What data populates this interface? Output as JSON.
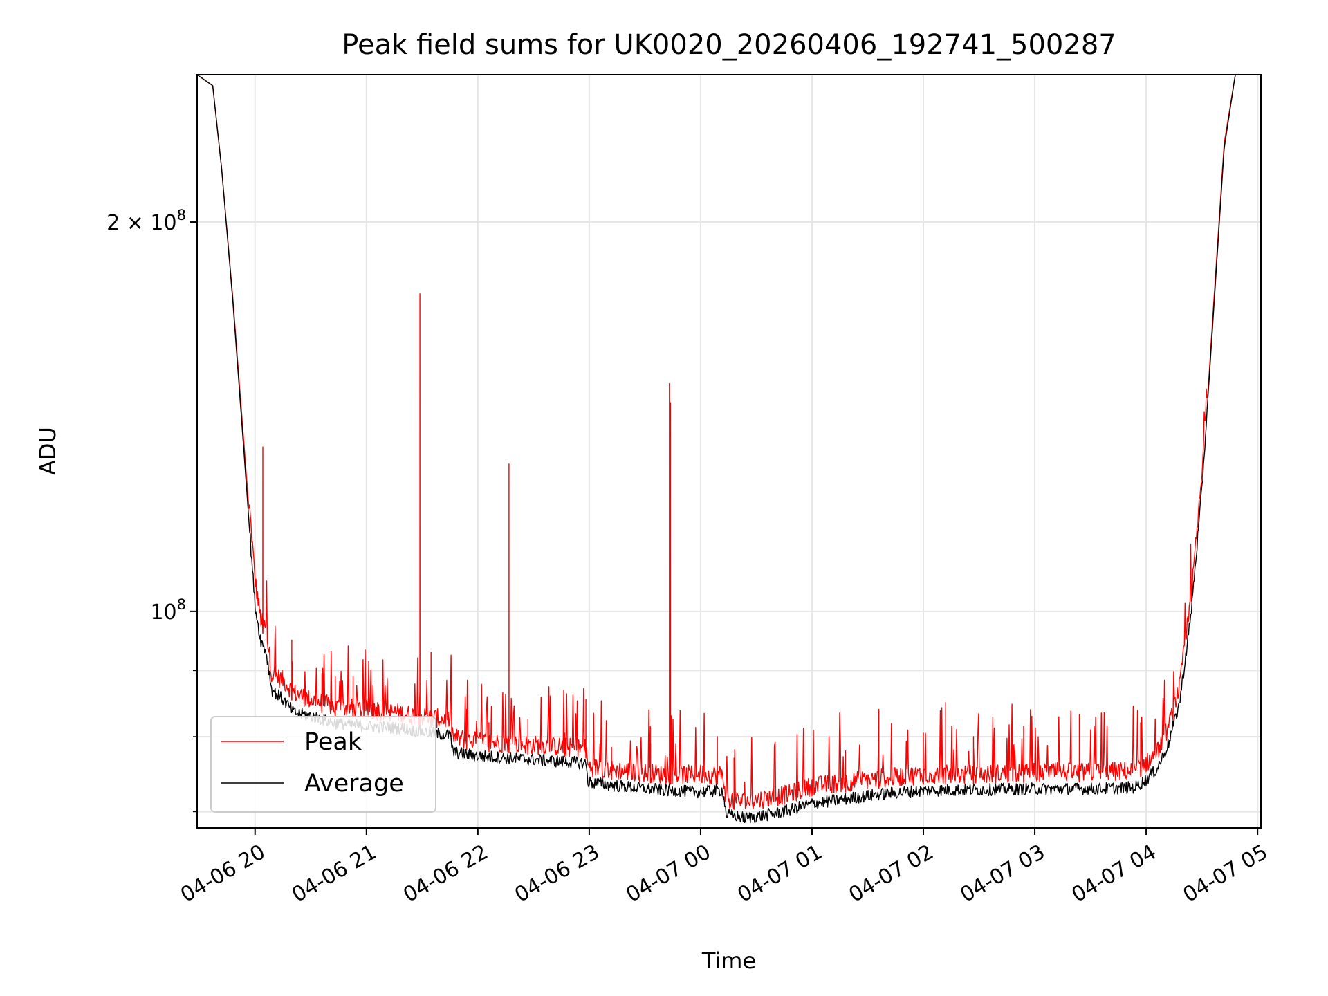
{
  "chart_data": {
    "type": "line",
    "title": "Peak field sums for UK0020_20260406_192741_500287",
    "xlabel": "Time",
    "ylabel": "ADU",
    "yscale": "log",
    "xlim": [
      -0.52,
      9.03
    ],
    "ylim": [
      68000000,
      260000000
    ],
    "grid": true,
    "legend": {
      "placement": "lower-left",
      "entries": [
        "Peak",
        "Average"
      ]
    },
    "x_ticks": [
      {
        "value": 0,
        "label": "04-06 20"
      },
      {
        "value": 1,
        "label": "04-06 21"
      },
      {
        "value": 2,
        "label": "04-06 22"
      },
      {
        "value": 3,
        "label": "04-06 23"
      },
      {
        "value": 4,
        "label": "04-07 00"
      },
      {
        "value": 5,
        "label": "04-07 01"
      },
      {
        "value": 6,
        "label": "04-07 02"
      },
      {
        "value": 7,
        "label": "04-07 03"
      },
      {
        "value": 8,
        "label": "04-07 04"
      },
      {
        "value": 9,
        "label": "04-07 05"
      }
    ],
    "y_major_ticks": [
      {
        "value": 100000000,
        "base": "10",
        "exp": "8",
        "prefix": ""
      },
      {
        "value": 200000000,
        "base": "10",
        "exp": "8",
        "prefix": "2 × "
      }
    ],
    "y_minor_ticks": [
      70000000,
      80000000,
      90000000
    ],
    "series": [
      {
        "name": "Peak",
        "color": "#ff0000",
        "baseline": [
          [
            -0.52,
            260000000
          ],
          [
            -0.38,
            255000000
          ],
          [
            -0.3,
            220000000
          ],
          [
            -0.2,
            175000000
          ],
          [
            -0.1,
            135000000
          ],
          [
            0.0,
            104000000
          ],
          [
            0.05,
            97000000
          ],
          [
            0.1,
            95000000
          ],
          [
            0.15,
            88000000
          ],
          [
            0.25,
            87000000
          ],
          [
            0.35,
            85000000
          ],
          [
            0.5,
            84000000
          ],
          [
            0.7,
            83000000
          ],
          [
            1.0,
            82500000
          ],
          [
            1.3,
            82000000
          ],
          [
            1.5,
            81500000
          ],
          [
            1.75,
            81000000
          ],
          [
            1.78,
            78500000
          ],
          [
            2.0,
            78000000
          ],
          [
            2.5,
            77500000
          ],
          [
            2.97,
            77000000
          ],
          [
            2.99,
            74500000
          ],
          [
            3.3,
            74000000
          ],
          [
            3.7,
            73500000
          ],
          [
            3.95,
            73500000
          ],
          [
            4.2,
            73500000
          ],
          [
            4.23,
            70500000
          ],
          [
            4.4,
            70000000
          ],
          [
            4.6,
            70500000
          ],
          [
            4.8,
            71000000
          ],
          [
            5.0,
            72000000
          ],
          [
            5.3,
            72500000
          ],
          [
            5.6,
            73000000
          ],
          [
            6.0,
            73500000
          ],
          [
            6.5,
            73500000
          ],
          [
            7.0,
            73800000
          ],
          [
            7.5,
            73800000
          ],
          [
            7.9,
            74000000
          ],
          [
            8.0,
            75000000
          ],
          [
            8.1,
            76500000
          ],
          [
            8.2,
            80000000
          ],
          [
            8.3,
            86000000
          ],
          [
            8.4,
            100000000
          ],
          [
            8.5,
            125000000
          ],
          [
            8.6,
            170000000
          ],
          [
            8.7,
            230000000
          ],
          [
            8.8,
            260000000
          ],
          [
            9.03,
            260000000
          ]
        ],
        "spikes": [
          [
            0.07,
            134000000
          ],
          [
            0.33,
            95000000
          ],
          [
            1.48,
            176000000
          ],
          [
            1.58,
            93000000
          ],
          [
            2.28,
            130000000
          ],
          [
            2.97,
            85500000
          ],
          [
            3.72,
            150000000
          ],
          [
            3.73,
            145000000
          ],
          [
            0.6,
            89500000
          ],
          [
            0.72,
            89000000
          ],
          [
            0.88,
            89000000
          ],
          [
            1.1,
            85000000
          ],
          [
            1.9,
            84000000
          ],
          [
            2.1,
            82000000
          ],
          [
            2.45,
            82500000
          ],
          [
            2.78,
            80500000
          ],
          [
            4.3,
            77000000
          ],
          [
            5.3,
            78000000
          ],
          [
            5.6,
            84000000
          ],
          [
            6.2,
            85000000
          ],
          [
            6.0,
            80500000
          ],
          [
            6.45,
            80000000
          ],
          [
            6.9,
            81500000
          ],
          [
            7.4,
            80000000
          ],
          [
            7.95,
            82000000
          ],
          [
            3.55,
            79000000
          ],
          [
            4.15,
            80000000
          ],
          [
            3.2,
            78500000
          ]
        ]
      },
      {
        "name": "Average",
        "color": "#000000",
        "baseline": [
          [
            -0.52,
            260000000
          ],
          [
            -0.38,
            255000000
          ],
          [
            -0.3,
            220000000
          ],
          [
            -0.2,
            174000000
          ],
          [
            -0.1,
            133000000
          ],
          [
            0.0,
            101000000
          ],
          [
            0.05,
            95000000
          ],
          [
            0.1,
            93000000
          ],
          [
            0.15,
            87000000
          ],
          [
            0.25,
            85500000
          ],
          [
            0.35,
            83500000
          ],
          [
            0.5,
            83000000
          ],
          [
            0.7,
            82000000
          ],
          [
            1.0,
            81500000
          ],
          [
            1.3,
            81200000
          ],
          [
            1.5,
            80700000
          ],
          [
            1.75,
            80200000
          ],
          [
            1.78,
            77800000
          ],
          [
            2.0,
            77300000
          ],
          [
            2.5,
            76800000
          ],
          [
            2.97,
            76300000
          ],
          [
            2.99,
            73800000
          ],
          [
            3.3,
            73200000
          ],
          [
            3.7,
            72700000
          ],
          [
            3.95,
            72500000
          ],
          [
            4.2,
            72700000
          ],
          [
            4.23,
            69700000
          ],
          [
            4.4,
            69200000
          ],
          [
            4.6,
            69600000
          ],
          [
            4.8,
            70200000
          ],
          [
            5.0,
            71000000
          ],
          [
            5.3,
            71600000
          ],
          [
            5.6,
            72200000
          ],
          [
            6.0,
            72700000
          ],
          [
            6.5,
            72800000
          ],
          [
            7.0,
            72900000
          ],
          [
            7.5,
            72900000
          ],
          [
            7.9,
            73100000
          ],
          [
            8.0,
            74100000
          ],
          [
            8.1,
            75600000
          ],
          [
            8.2,
            79000000
          ],
          [
            8.3,
            85000000
          ],
          [
            8.4,
            99000000
          ],
          [
            8.5,
            124000000
          ],
          [
            8.6,
            168000000
          ],
          [
            8.7,
            228000000
          ],
          [
            8.8,
            260000000
          ],
          [
            9.03,
            260000000
          ]
        ],
        "spikes": []
      }
    ]
  }
}
